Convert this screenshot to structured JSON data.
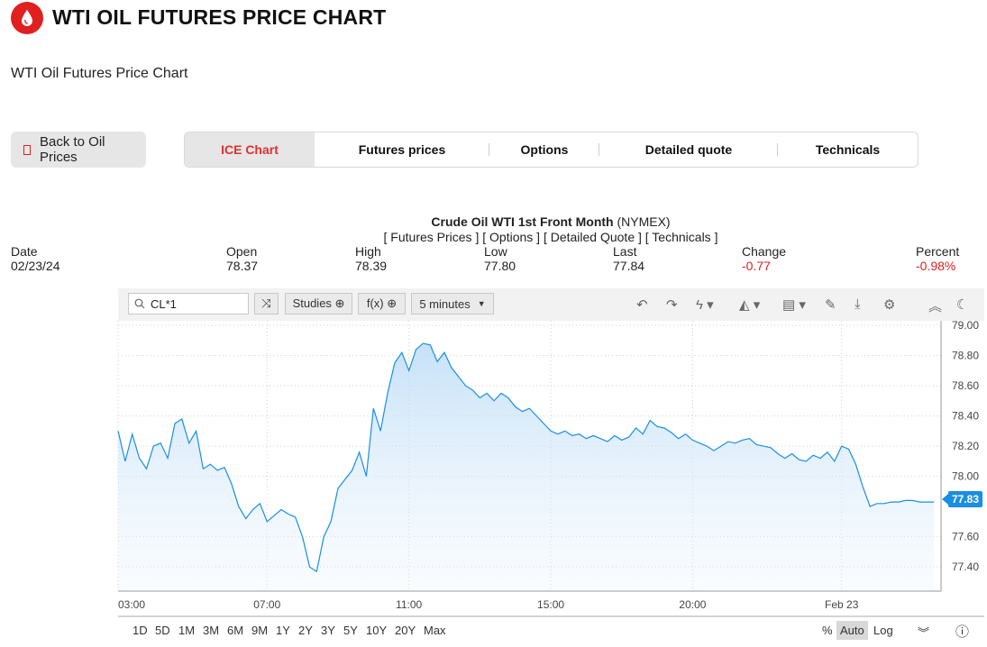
{
  "header": {
    "title": "WTI OIL FUTURES PRICE CHART",
    "subtitle": "WTI Oil Futures Price Chart"
  },
  "back_button": {
    "label": "Back to Oil Prices"
  },
  "tabs": [
    {
      "label": "ICE Chart",
      "active": true
    },
    {
      "label": "Futures prices"
    },
    {
      "label": "Options"
    },
    {
      "label": "Detailed quote"
    },
    {
      "label": "Technicals"
    }
  ],
  "instrument": {
    "name": "Crude Oil WTI 1st Front Month",
    "exchange": "(NYMEX)",
    "links": [
      "[ Futures Prices ]",
      "[ Options ]",
      "[ Detailed Quote ]",
      "[ Technicals ]"
    ]
  },
  "quote": [
    {
      "label": "Date",
      "value": "02/23/24"
    },
    {
      "label": "Open",
      "value": "78.37"
    },
    {
      "label": "High",
      "value": "78.39"
    },
    {
      "label": "Low",
      "value": "77.80"
    },
    {
      "label": "Last",
      "value": "77.84"
    },
    {
      "label": "Change",
      "value": "-0.77"
    },
    {
      "label": "Percent",
      "value": "-0.98%"
    }
  ],
  "toolbar": {
    "symbol": "CL*1",
    "studies": "Studies ⊕",
    "fx": "f(x) ⊕",
    "interval": "5 minutes"
  },
  "ranges": [
    "1D",
    "5D",
    "1M",
    "3M",
    "6M",
    "9M",
    "1Y",
    "2Y",
    "3Y",
    "5Y",
    "10Y",
    "20Y",
    "Max"
  ],
  "scale_options": [
    "%",
    "Auto",
    "Log"
  ],
  "colors": {
    "accent": "#e02020",
    "line": "#1a8fe0"
  },
  "chart_data": {
    "type": "area",
    "ylim": [
      77.24,
      79.03
    ],
    "y_ticks": [
      "79.00",
      "78.80",
      "78.60",
      "78.40",
      "78.20",
      "78.00",
      "77.60",
      "77.40"
    ],
    "y_tick_values": [
      79.0,
      78.8,
      78.6,
      78.4,
      78.2,
      78.0,
      77.6,
      77.4
    ],
    "x_ticks": [
      "03:00",
      "07:00",
      "11:00",
      "15:00",
      "20:00",
      "Feb 23"
    ],
    "last_price": "77.83",
    "x": [
      0,
      2,
      4,
      6,
      8,
      10,
      12,
      14,
      16,
      18,
      20,
      22,
      24,
      26,
      28,
      30,
      32,
      34,
      36,
      38,
      40,
      42,
      44,
      46,
      48,
      50,
      52,
      54,
      56,
      58,
      60,
      62,
      64,
      66,
      68,
      70,
      72,
      74,
      76,
      78,
      80,
      82,
      84,
      86,
      88,
      90,
      92,
      94,
      96,
      98,
      100,
      102,
      104,
      106,
      108,
      110,
      112,
      114,
      116,
      118,
      120,
      122,
      124,
      126,
      128,
      130,
      132,
      134,
      136,
      138,
      140,
      142,
      144,
      146,
      148,
      150,
      152,
      154,
      156,
      158,
      160,
      162,
      164,
      166,
      168,
      170,
      172,
      174,
      176,
      178,
      180,
      182,
      184,
      186,
      188,
      190,
      192,
      194,
      196,
      198,
      200,
      202,
      204,
      206,
      208,
      210,
      212,
      214,
      216,
      218,
      220,
      222,
      224,
      226,
      228,
      230
    ],
    "y": [
      78.3,
      78.1,
      78.28,
      78.12,
      78.05,
      78.2,
      78.22,
      78.12,
      78.35,
      78.38,
      78.22,
      78.3,
      78.05,
      78.08,
      78.04,
      78.06,
      77.95,
      77.8,
      77.72,
      77.78,
      77.82,
      77.7,
      77.74,
      77.78,
      77.75,
      77.73,
      77.6,
      77.4,
      77.37,
      77.6,
      77.7,
      77.92,
      77.98,
      78.04,
      78.16,
      78.0,
      78.45,
      78.3,
      78.55,
      78.75,
      78.82,
      78.7,
      78.84,
      78.88,
      78.87,
      78.76,
      78.82,
      78.72,
      78.66,
      78.6,
      78.57,
      78.52,
      78.55,
      78.5,
      78.55,
      78.52,
      78.46,
      78.43,
      78.45,
      78.4,
      78.35,
      78.3,
      78.28,
      78.3,
      78.27,
      78.28,
      78.25,
      78.27,
      78.25,
      78.23,
      78.27,
      78.24,
      78.26,
      78.32,
      78.28,
      78.37,
      78.33,
      78.32,
      78.29,
      78.25,
      78.28,
      78.24,
      78.22,
      78.2,
      78.17,
      78.2,
      78.23,
      78.22,
      78.24,
      78.25,
      78.21,
      78.2,
      78.19,
      78.15,
      78.12,
      78.15,
      78.11,
      78.1,
      78.14,
      78.12,
      78.16,
      78.1,
      78.2,
      78.18,
      78.08,
      77.93,
      77.8,
      77.82,
      77.82,
      77.83,
      77.83,
      77.84,
      77.84,
      77.83,
      77.83,
      77.83
    ],
    "x_tick_positions": [
      0,
      42,
      82,
      122,
      162,
      204
    ],
    "plot_end": 230
  }
}
